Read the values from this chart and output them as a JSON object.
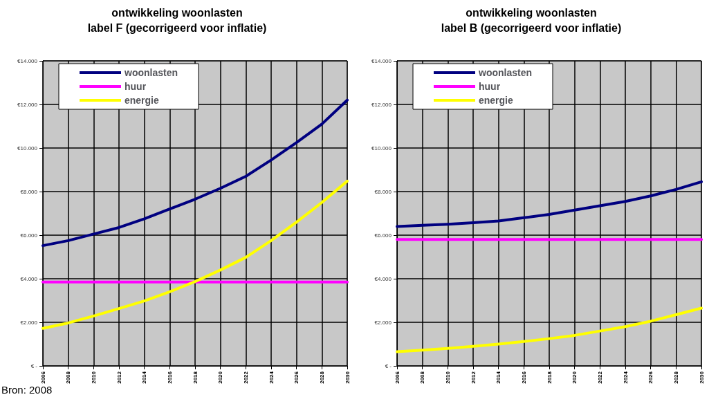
{
  "chart_data": [
    {
      "type": "line",
      "title": "ontwikkeling woonlasten",
      "subtitle": "label F (gecorrigeerd voor inflatie)",
      "annotations": [
        "Bron: 2008"
      ],
      "x": [
        2006,
        2008,
        2010,
        2012,
        2014,
        2016,
        2018,
        2020,
        2022,
        2024,
        2026,
        2028,
        2030
      ],
      "series": [
        {
          "name": "woonlasten",
          "color": "#000080",
          "values": [
            5520,
            5750,
            6050,
            6350,
            6750,
            7200,
            7650,
            8150,
            8700,
            9450,
            10250,
            11100,
            12200
          ]
        },
        {
          "name": "huur",
          "color": "#ff00ff",
          "values": [
            3850,
            3850,
            3850,
            3850,
            3850,
            3850,
            3850,
            3850,
            3850,
            3850,
            3850,
            3850,
            3850
          ]
        },
        {
          "name": "energie",
          "color": "#ffff00",
          "values": [
            1720,
            1970,
            2290,
            2630,
            2980,
            3400,
            3870,
            4400,
            4980,
            5750,
            6600,
            7500,
            8480
          ]
        }
      ],
      "xlim": [
        2006,
        2030
      ],
      "xticks": [
        2006,
        2008,
        2010,
        2012,
        2014,
        2016,
        2018,
        2020,
        2022,
        2024,
        2026,
        2028,
        2030
      ],
      "ylim": [
        0,
        14000
      ],
      "yticks": [
        {
          "value": 0,
          "label": "€ -"
        },
        {
          "value": 2000,
          "label": "€2.000"
        },
        {
          "value": 4000,
          "label": "€4.000"
        },
        {
          "value": 6000,
          "label": "€6.000"
        },
        {
          "value": 8000,
          "label": "€8.000"
        },
        {
          "value": 10000,
          "label": "€10.000"
        },
        {
          "value": 12000,
          "label": "€12.000"
        },
        {
          "value": 14000,
          "label": "€14.000"
        }
      ],
      "grid": true,
      "legend": "top left",
      "marker": "none",
      "line_style": "solid"
    },
    {
      "type": "line",
      "title": "ontwikkeling woonlasten",
      "subtitle": "label B (gecorrigeerd voor inflatie)",
      "x": [
        2006,
        2008,
        2010,
        2012,
        2014,
        2016,
        2018,
        2020,
        2022,
        2024,
        2026,
        2028,
        2030
      ],
      "series": [
        {
          "name": "woonlasten",
          "color": "#000080",
          "values": [
            6400,
            6450,
            6500,
            6570,
            6650,
            6800,
            6950,
            7150,
            7350,
            7550,
            7800,
            8100,
            8450
          ]
        },
        {
          "name": "huur",
          "color": "#ff00ff",
          "values": [
            5800,
            5800,
            5800,
            5800,
            5800,
            5800,
            5800,
            5800,
            5800,
            5800,
            5800,
            5800,
            5800
          ]
        },
        {
          "name": "energie",
          "color": "#ffff00",
          "values": [
            650,
            720,
            800,
            900,
            1000,
            1120,
            1250,
            1400,
            1600,
            1800,
            2050,
            2350,
            2650
          ]
        }
      ],
      "xlim": [
        2006,
        2030
      ],
      "xticks": [
        2006,
        2008,
        2010,
        2012,
        2014,
        2016,
        2018,
        2020,
        2022,
        2024,
        2026,
        2028,
        2030
      ],
      "ylim": [
        0,
        14000
      ],
      "yticks": [
        {
          "value": 0,
          "label": "€ -"
        },
        {
          "value": 2000,
          "label": "€2.000"
        },
        {
          "value": 4000,
          "label": "€4.000"
        },
        {
          "value": 6000,
          "label": "€6.000"
        },
        {
          "value": 8000,
          "label": "€8.000"
        },
        {
          "value": 10000,
          "label": "€10.000"
        },
        {
          "value": 12000,
          "label": "€12.000"
        },
        {
          "value": 14000,
          "label": "€14.000"
        }
      ],
      "grid": true,
      "legend": "top left",
      "marker": "none",
      "line_style": "solid"
    }
  ]
}
